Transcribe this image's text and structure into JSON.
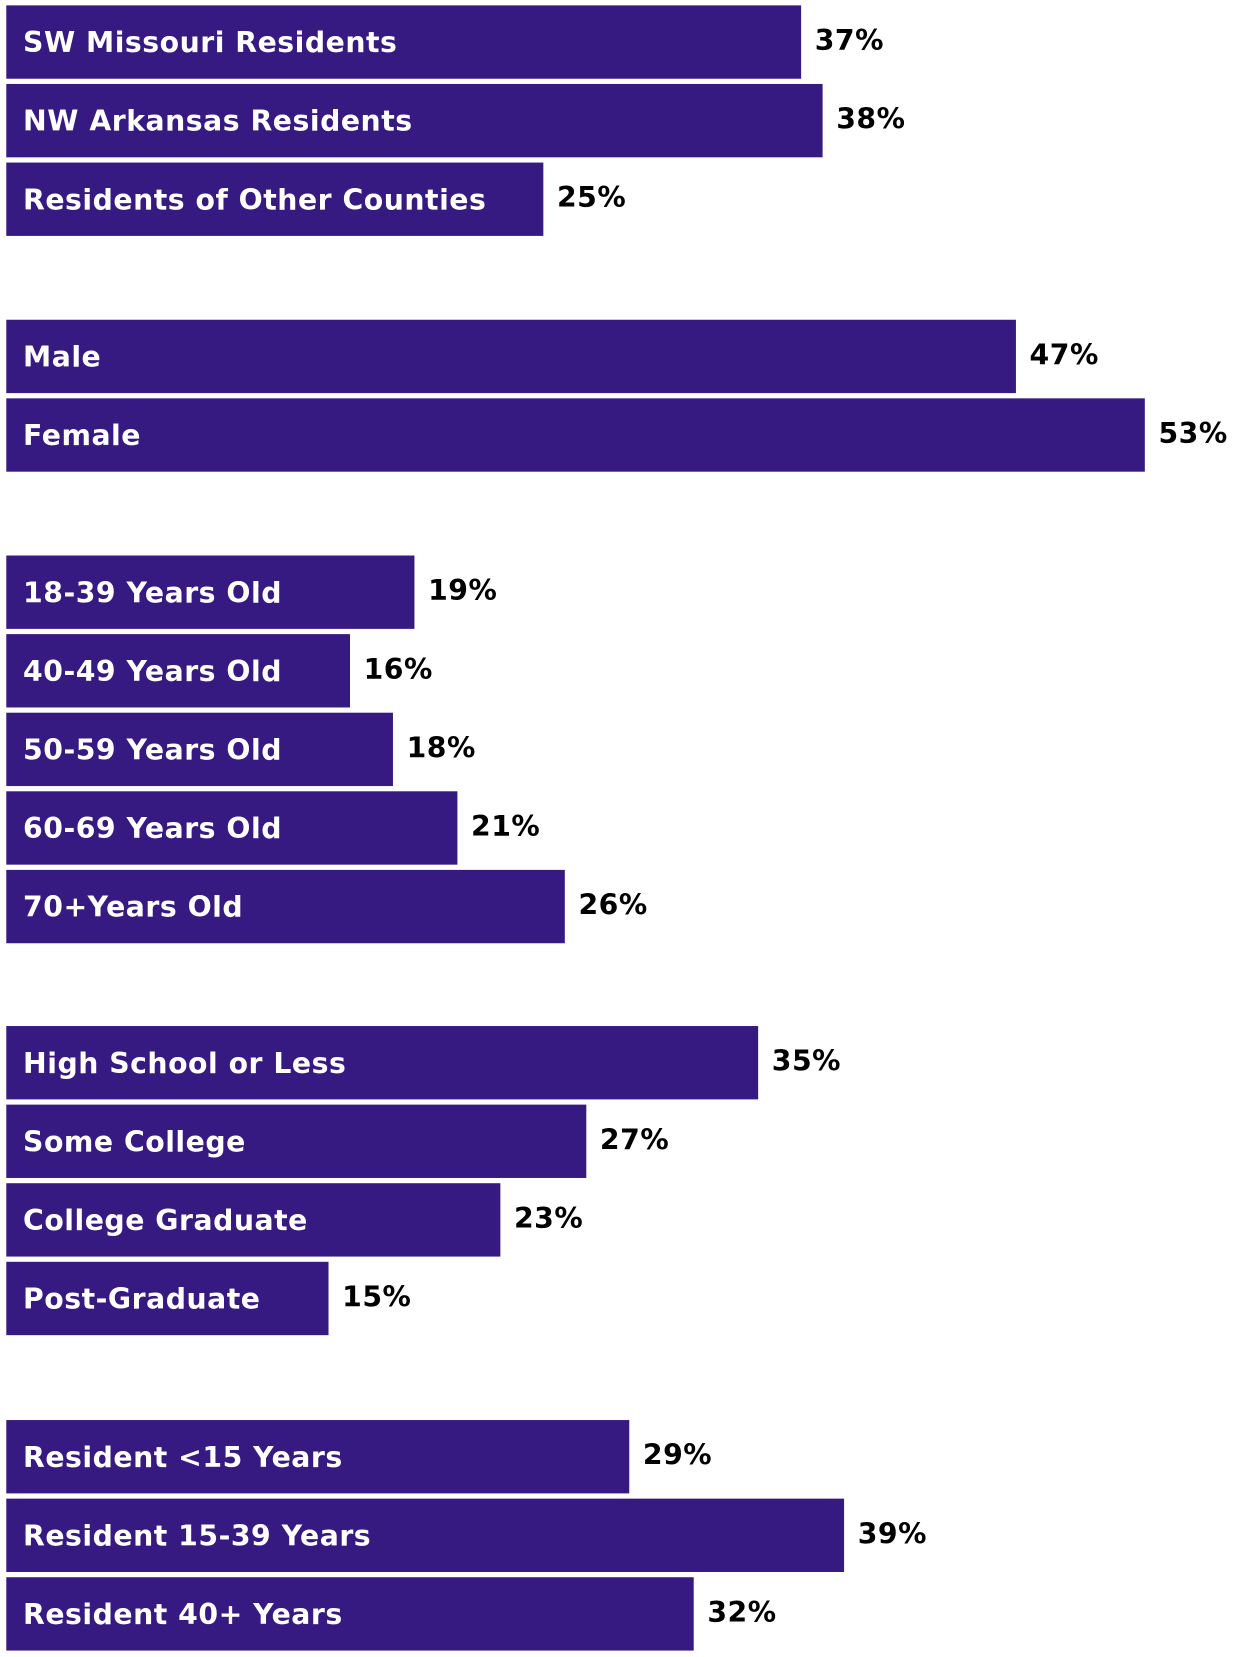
{
  "chart_data": [
    {
      "type": "bar",
      "orientation": "horizontal",
      "color": "#361a82",
      "categories": [
        "SW Missouri Residents",
        "NW Arkansas Residents",
        "Residents of Other Counties"
      ],
      "values": [
        37,
        38,
        25
      ],
      "value_labels": [
        "37%",
        "38%",
        "25%"
      ]
    },
    {
      "type": "bar",
      "orientation": "horizontal",
      "color": "#361a82",
      "categories": [
        "Male",
        "Female"
      ],
      "values": [
        47,
        53
      ],
      "value_labels": [
        "47%",
        "53%"
      ]
    },
    {
      "type": "bar",
      "orientation": "horizontal",
      "color": "#361a82",
      "categories": [
        "18-39 Years Old",
        "40-49 Years Old",
        "50-59 Years Old",
        "60-69 Years Old",
        "70+Years Old"
      ],
      "values": [
        19,
        16,
        18,
        21,
        26
      ],
      "value_labels": [
        "19%",
        "16%",
        "18%",
        "21%",
        "26%"
      ]
    },
    {
      "type": "bar",
      "orientation": "horizontal",
      "color": "#361a82",
      "categories": [
        "High School or Less",
        "Some College",
        "College Graduate",
        "Post-Graduate"
      ],
      "values": [
        35,
        27,
        23,
        15
      ],
      "value_labels": [
        "35%",
        "27%",
        "23%",
        "15%"
      ]
    },
    {
      "type": "bar",
      "orientation": "horizontal",
      "color": "#361a82",
      "categories": [
        "Resident <15 Years",
        "Resident 15-39 Years",
        "Resident 40+ Years"
      ],
      "values": [
        29,
        39,
        32
      ],
      "value_labels": [
        "29%",
        "39%",
        "32%"
      ]
    }
  ]
}
